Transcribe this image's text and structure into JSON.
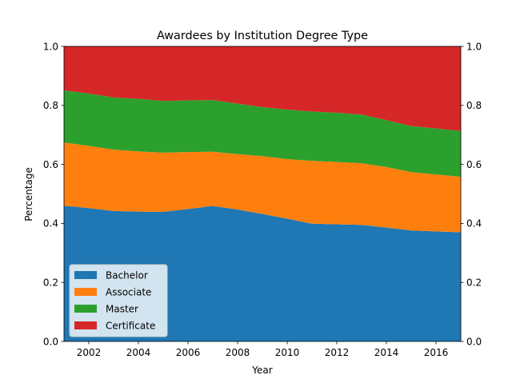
{
  "chart_data": {
    "type": "area",
    "stacked": true,
    "normalized": true,
    "title": "Awardees by Institution Degree Type",
    "xlabel": "Year",
    "ylabel": "Percentage",
    "xlim": [
      2001,
      2017
    ],
    "ylim": [
      0,
      1
    ],
    "x": [
      2001,
      2002,
      2003,
      2004,
      2005,
      2006,
      2007,
      2008,
      2009,
      2010,
      2011,
      2012,
      2013,
      2014,
      2015,
      2016,
      2017
    ],
    "x_ticks": [
      2002,
      2004,
      2006,
      2008,
      2010,
      2012,
      2014,
      2016
    ],
    "y_ticks": [
      0.0,
      0.2,
      0.4,
      0.6,
      0.8,
      1.0
    ],
    "y_tick_labels": [
      "0.0",
      "0.2",
      "0.4",
      "0.6",
      "0.8",
      "1.0"
    ],
    "secondary_y_axis": true,
    "grid": false,
    "legend_position": "lower-left",
    "series": [
      {
        "name": "Bachelor",
        "color": "#1f77b4",
        "values": [
          0.46,
          0.452,
          0.442,
          0.44,
          0.439,
          0.449,
          0.459,
          0.447,
          0.432,
          0.416,
          0.399,
          0.397,
          0.395,
          0.386,
          0.376,
          0.373,
          0.37
        ]
      },
      {
        "name": "Associate",
        "color": "#ff7f0e",
        "values": [
          0.214,
          0.211,
          0.208,
          0.204,
          0.201,
          0.193,
          0.184,
          0.188,
          0.196,
          0.202,
          0.213,
          0.211,
          0.209,
          0.205,
          0.198,
          0.193,
          0.188
        ]
      },
      {
        "name": "Master",
        "color": "#2ca02c",
        "values": [
          0.177,
          0.177,
          0.177,
          0.178,
          0.175,
          0.175,
          0.175,
          0.171,
          0.166,
          0.168,
          0.167,
          0.167,
          0.165,
          0.159,
          0.156,
          0.156,
          0.155
        ]
      },
      {
        "name": "Certificate",
        "color": "#d62728",
        "values": [
          0.149,
          0.16,
          0.173,
          0.178,
          0.185,
          0.183,
          0.182,
          0.194,
          0.206,
          0.214,
          0.221,
          0.225,
          0.231,
          0.25,
          0.27,
          0.278,
          0.287
        ]
      }
    ]
  }
}
